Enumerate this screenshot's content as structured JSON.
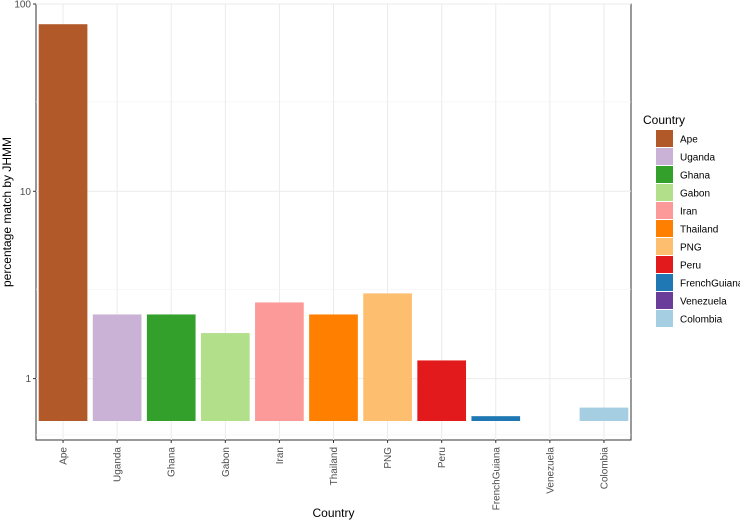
{
  "chart_data": {
    "type": "bar",
    "xlabel": "Country",
    "ylabel": "percentage match by JHMM",
    "yscale": "log",
    "ylim": [
      0.47,
      100
    ],
    "yticks": [
      1,
      10,
      100
    ],
    "grid": true,
    "legend_title": "Country",
    "legend_position": "right",
    "categories": [
      "Ape",
      "Uganda",
      "Ghana",
      "Gabon",
      "Iran",
      "Thailand",
      "PNG",
      "Peru",
      "FrenchGuiana",
      "Venezuela",
      "Colombia"
    ],
    "values": [
      78,
      2.2,
      2.2,
      1.75,
      2.55,
      2.2,
      2.85,
      1.25,
      0.63,
      0.57,
      0.7
    ],
    "colors": [
      "#B15928",
      "#CAB2D6",
      "#33A02C",
      "#B2DF8A",
      "#FB9A99",
      "#FF7F00",
      "#FDBF6F",
      "#E31A1C",
      "#1F78B4",
      "#6A3D9A",
      "#A6CEE3"
    ]
  }
}
